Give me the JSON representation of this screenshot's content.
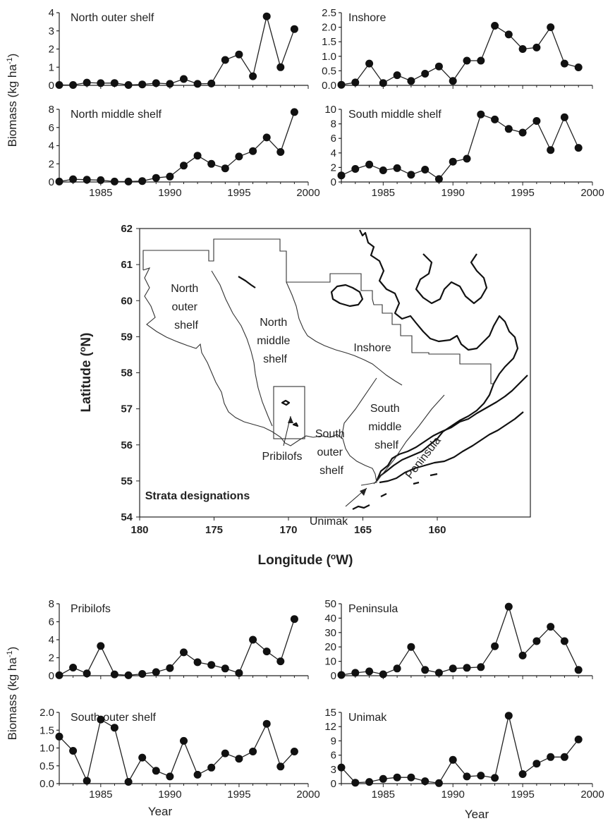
{
  "chart_data": [
    {
      "type": "line",
      "title": "North outer shelf",
      "x": [
        1982,
        1983,
        1984,
        1985,
        1986,
        1987,
        1988,
        1989,
        1990,
        1991,
        1992,
        1993,
        1994,
        1995,
        1996,
        1997,
        1998,
        1999
      ],
      "values": [
        0.02,
        0.02,
        0.15,
        0.12,
        0.13,
        0.02,
        0.05,
        0.12,
        0.08,
        0.35,
        0.08,
        0.1,
        1.4,
        1.7,
        0.5,
        3.8,
        1.0,
        3.1
      ],
      "ylim": [
        0,
        4
      ],
      "yticks": [
        "0",
        "1",
        "2",
        "3",
        "4"
      ],
      "xlim": [
        1982,
        2000
      ],
      "xticks": [
        1985,
        1990,
        1995,
        2000
      ],
      "show_xticks": false
    },
    {
      "type": "line",
      "title": "Inshore",
      "x": [
        1982,
        1983,
        1984,
        1985,
        1986,
        1987,
        1988,
        1989,
        1990,
        1991,
        1992,
        1993,
        1994,
        1995,
        1996,
        1997,
        1998,
        1999
      ],
      "values": [
        0.02,
        0.1,
        0.75,
        0.08,
        0.35,
        0.15,
        0.4,
        0.65,
        0.15,
        0.85,
        0.85,
        2.05,
        1.75,
        1.25,
        1.3,
        2.0,
        0.75,
        0.62
      ],
      "ylim": [
        0,
        2.5
      ],
      "yticks": [
        "0.0",
        "0.5",
        "1.0",
        "1.5",
        "2.0",
        "2.5"
      ],
      "xlim": [
        1982,
        2000
      ],
      "xticks": [
        1985,
        1990,
        1995,
        2000
      ],
      "show_xticks": false
    },
    {
      "type": "line",
      "title": "North middle shelf",
      "x": [
        1982,
        1983,
        1984,
        1985,
        1986,
        1987,
        1988,
        1989,
        1990,
        1991,
        1992,
        1993,
        1994,
        1995,
        1996,
        1997,
        1998,
        1999
      ],
      "values": [
        0.05,
        0.3,
        0.25,
        0.2,
        0.05,
        0.05,
        0.1,
        0.45,
        0.6,
        1.8,
        2.9,
        2.0,
        1.5,
        2.8,
        3.4,
        4.9,
        3.3,
        7.7
      ],
      "ylim": [
        0,
        8
      ],
      "yticks": [
        "0",
        "2",
        "4",
        "6",
        "8"
      ],
      "xlim": [
        1982,
        2000
      ],
      "xticks": [
        1985,
        1990,
        1995,
        2000
      ],
      "show_xticks": true
    },
    {
      "type": "line",
      "title": "South middle shelf",
      "x": [
        1982,
        1983,
        1984,
        1985,
        1986,
        1987,
        1988,
        1989,
        1990,
        1991,
        1992,
        1993,
        1994,
        1995,
        1996,
        1997,
        1998,
        1999
      ],
      "values": [
        0.9,
        1.8,
        2.4,
        1.6,
        1.9,
        1.0,
        1.7,
        0.4,
        2.8,
        3.2,
        9.3,
        8.6,
        7.3,
        6.8,
        8.4,
        4.4,
        8.9,
        4.7
      ],
      "ylim": [
        0,
        10
      ],
      "yticks": [
        "0",
        "2",
        "4",
        "6",
        "8",
        "10"
      ],
      "xlim": [
        1982,
        2000
      ],
      "xticks": [
        1985,
        1990,
        1995,
        2000
      ],
      "show_xticks": true
    },
    {
      "type": "line",
      "title": "Pribilofs",
      "x": [
        1982,
        1983,
        1984,
        1985,
        1986,
        1987,
        1988,
        1989,
        1990,
        1991,
        1992,
        1993,
        1994,
        1995,
        1996,
        1997,
        1998,
        1999
      ],
      "values": [
        0.05,
        0.9,
        0.25,
        3.3,
        0.15,
        0.05,
        0.2,
        0.4,
        0.85,
        2.6,
        1.5,
        1.2,
        0.8,
        0.3,
        4.0,
        2.7,
        1.6,
        6.3
      ],
      "ylim": [
        0,
        8
      ],
      "yticks": [
        "0",
        "2",
        "4",
        "6",
        "8"
      ],
      "xlim": [
        1982,
        2000
      ],
      "xticks": [
        1985,
        1990,
        1995,
        2000
      ],
      "show_xticks": false
    },
    {
      "type": "line",
      "title": "Peninsula",
      "x": [
        1982,
        1983,
        1984,
        1985,
        1986,
        1987,
        1988,
        1989,
        1990,
        1991,
        1992,
        1993,
        1994,
        1995,
        1996,
        1997,
        1998,
        1999
      ],
      "values": [
        0.5,
        2,
        3,
        1,
        5,
        20,
        4,
        2,
        5,
        5.5,
        6,
        20.5,
        48,
        14,
        24,
        34,
        24,
        4
      ],
      "ylim": [
        0,
        50
      ],
      "yticks": [
        "0",
        "10",
        "20",
        "30",
        "40",
        "50"
      ],
      "xlim": [
        1982,
        2000
      ],
      "xticks": [
        1985,
        1990,
        1995,
        2000
      ],
      "show_xticks": false
    },
    {
      "type": "line",
      "title": "South outer shelf",
      "x": [
        1982,
        1983,
        1984,
        1985,
        1986,
        1987,
        1988,
        1989,
        1990,
        1991,
        1992,
        1993,
        1994,
        1995,
        1996,
        1997,
        1998,
        1999
      ],
      "values": [
        1.32,
        0.92,
        0.08,
        1.8,
        1.57,
        0.05,
        0.73,
        0.36,
        0.2,
        1.2,
        0.25,
        0.45,
        0.85,
        0.7,
        0.9,
        1.68,
        0.48,
        0.9
      ],
      "ylim": [
        0,
        2
      ],
      "yticks": [
        "0.0",
        "0.5",
        "1.0",
        "1.5",
        "2.0"
      ],
      "xlim": [
        1982,
        2000
      ],
      "xticks": [
        1985,
        1990,
        1995,
        2000
      ],
      "show_xticks": true
    },
    {
      "type": "line",
      "title": "Unimak",
      "x": [
        1982,
        1983,
        1984,
        1985,
        1986,
        1987,
        1988,
        1989,
        1990,
        1991,
        1992,
        1993,
        1994,
        1995,
        1996,
        1997,
        1998,
        1999
      ],
      "values": [
        3.4,
        0.2,
        0.35,
        1.0,
        1.3,
        1.3,
        0.5,
        0.1,
        5.0,
        1.5,
        1.7,
        1.2,
        14.3,
        2.0,
        4.2,
        5.6,
        5.6,
        9.3
      ],
      "ylim": [
        0,
        15
      ],
      "yticks": [
        "0",
        "3",
        "6",
        "9",
        "12",
        "15"
      ],
      "xlim": [
        1982,
        2000
      ],
      "xticks": [
        1985,
        1990,
        1995,
        2000
      ],
      "show_xticks": true
    }
  ],
  "labels": {
    "ylabel_prefix": "Biomass (kg ha",
    "ylabel_sup": "-1",
    "ylabel_suffix": ")",
    "xlabel": "Year"
  },
  "map": {
    "ylabel_prefix": "Latitude (",
    "ylabel_sup": "o",
    "ylabel_suffix": "N)",
    "xlabel_prefix": "Longitude (",
    "xlabel_sup": "o",
    "xlabel_suffix": "W)",
    "lon_ticks": [
      "180",
      "175",
      "170",
      "165",
      "160"
    ],
    "lat_ticks": [
      "62",
      "61",
      "60",
      "59",
      "58",
      "57",
      "56",
      "55",
      "54"
    ],
    "legend_title": "Strata designations",
    "regions": {
      "north_outer": [
        "North",
        "outer",
        "shelf"
      ],
      "north_middle": [
        "North",
        "middle",
        "shelf"
      ],
      "inshore": "Inshore",
      "south_middle": [
        "South",
        "middle",
        "shelf"
      ],
      "south_outer": [
        "South",
        "outer",
        "shelf"
      ],
      "peninsula": "Peninsula",
      "pribilofs": "Pribilofs",
      "unimak": "Unimak"
    }
  }
}
